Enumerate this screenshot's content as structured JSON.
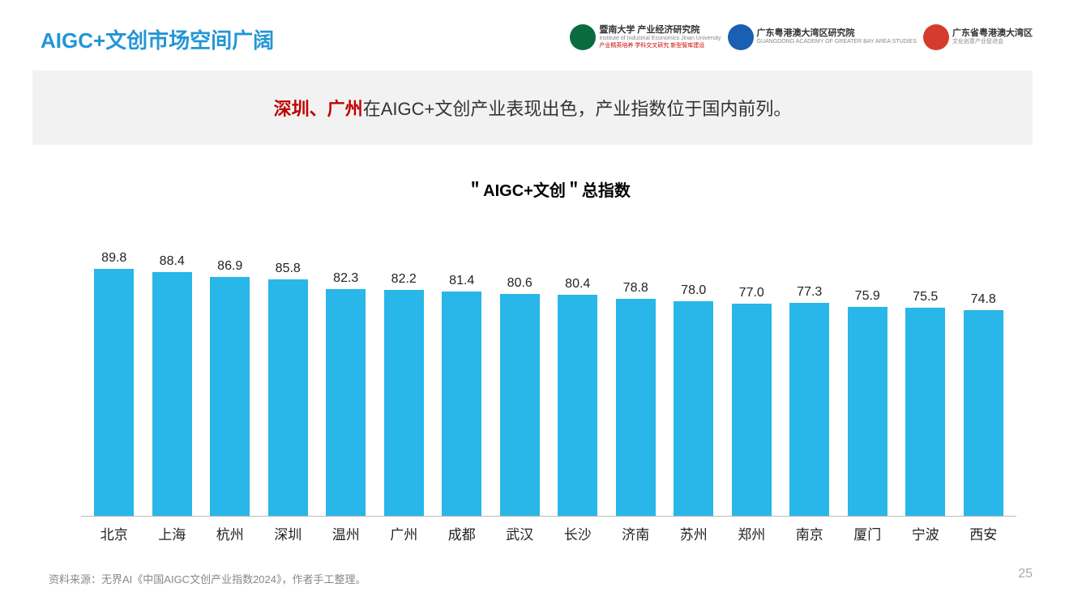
{
  "header": {
    "title": "AIGC+文创市场空间广阔",
    "title_color": "#2196d6",
    "logos": [
      {
        "badge_bg": "#0a6b3f",
        "main": "暨南大学 产业经济研究院",
        "sub": "Institute of Industrial Economics Jinan University",
        "tags": "产业精英培养 学科交叉研究 新型智库建设"
      },
      {
        "badge_bg": "#1a5fb4",
        "main": "广东粤港澳大湾区研究院",
        "sub": "GUANGDONG ACADEMY OF GREATER BAY AREA STUDIES",
        "tags": ""
      },
      {
        "badge_bg": "#d63c2e",
        "main": "广东省粤港澳大湾区",
        "sub": "文化创意产业促进会",
        "tags": ""
      }
    ]
  },
  "subtitle": {
    "highlight": "深圳、广州",
    "rest": "在AIGC+文创产业表现出色，产业指数位于国内前列。",
    "highlight_color": "#c00000",
    "band_bg": "#f2f2f2"
  },
  "chart": {
    "type": "bar",
    "title": "＂AIGC+文创＂总指数",
    "title_fontsize": 20,
    "bar_color": "#29b6e8",
    "value_fontsize": 16,
    "label_fontsize": 17,
    "ylim": [
      0,
      100
    ],
    "axis_color": "#bbbbbb",
    "background_color": "#ffffff",
    "bar_width": 0.68,
    "categories": [
      "北京",
      "上海",
      "杭州",
      "深圳",
      "温州",
      "广州",
      "成都",
      "武汉",
      "长沙",
      "济南",
      "苏州",
      "郑州",
      "南京",
      "厦门",
      "宁波",
      "西安"
    ],
    "values": [
      89.8,
      88.4,
      86.9,
      85.8,
      82.3,
      82.2,
      81.4,
      80.6,
      80.4,
      78.8,
      78.0,
      77.0,
      77.3,
      75.9,
      75.5,
      74.8
    ]
  },
  "footer": {
    "source": "资料来源：无界AI《中国AIGC文创产业指数2024》，作者手工整理。",
    "page_number": "25"
  }
}
